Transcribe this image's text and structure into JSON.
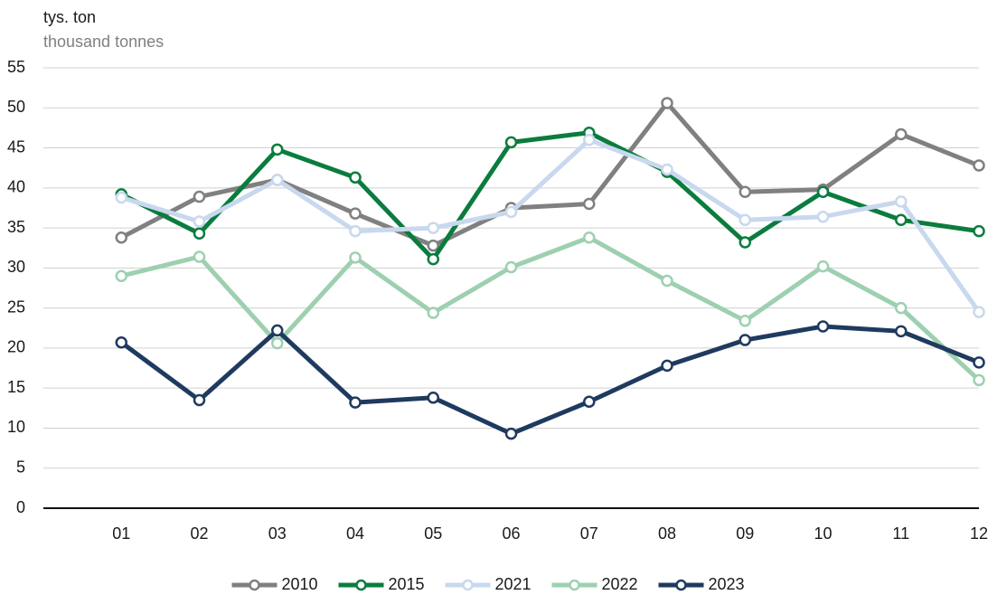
{
  "chart_data": {
    "type": "line",
    "title": "tys. ton",
    "subtitle": "thousand tonnes",
    "categories": [
      "01",
      "02",
      "03",
      "04",
      "05",
      "06",
      "07",
      "08",
      "09",
      "10",
      "11",
      "12"
    ],
    "series": [
      {
        "name": "2010",
        "color": "#808080",
        "values": [
          33.8,
          38.9,
          41,
          36.8,
          32.8,
          37.5,
          38,
          50.6,
          39.5,
          39.8,
          46.7,
          42.8
        ]
      },
      {
        "name": "2015",
        "color": "#0a7c3e",
        "values": [
          39.2,
          34.3,
          44.8,
          41.3,
          31.1,
          45.7,
          46.9,
          42,
          33.2,
          39.5,
          36,
          34.6
        ]
      },
      {
        "name": "2021",
        "color": "#c8d8ee",
        "values": [
          38.8,
          35.8,
          41,
          34.6,
          35,
          37,
          46,
          42.3,
          36,
          36.4,
          38.3,
          24.5
        ]
      },
      {
        "name": "2022",
        "color": "#9dd0b0",
        "values": [
          29,
          31.4,
          20.6,
          31.3,
          24.4,
          30.1,
          33.8,
          28.4,
          23.4,
          30.2,
          25,
          16
        ]
      },
      {
        "name": "2023",
        "color": "#1f3a5f",
        "values": [
          20.7,
          13.5,
          22.2,
          13.2,
          13.8,
          9.3,
          13.3,
          17.8,
          21,
          22.7,
          22.1,
          18.2
        ]
      }
    ],
    "ylim": [
      0,
      55
    ],
    "yticks": [
      0,
      5,
      10,
      15,
      20,
      25,
      30,
      35,
      40,
      45,
      50,
      55
    ],
    "grid": true,
    "legend": "bottom"
  }
}
